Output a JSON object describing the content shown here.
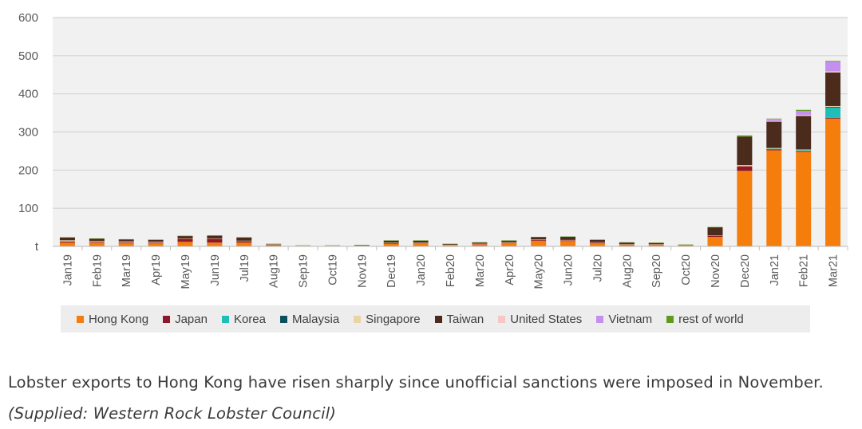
{
  "chart_data": {
    "type": "bar",
    "stacked": true,
    "categories": [
      "Jan19",
      "Feb19",
      "Mar19",
      "Apr19",
      "May19",
      "Jun19",
      "Jul19",
      "Aug19",
      "Sep19",
      "Oct19",
      "Nov19",
      "Dec19",
      "Jan20",
      "Feb20",
      "Mar20",
      "Apr20",
      "May20",
      "Jun20",
      "Jul20",
      "Aug20",
      "Sep20",
      "Oct20",
      "Nov20",
      "Dec20",
      "Jan21",
      "Feb21",
      "Mar21"
    ],
    "y_tick_labels": [
      "t",
      "100",
      "200",
      "300",
      "400",
      "500",
      "600"
    ],
    "ylim": [
      0,
      600
    ],
    "grid": true,
    "legend_position": "bottom",
    "series": [
      {
        "name": "Hong Kong",
        "color": "#f47d0c",
        "values": [
          10,
          10,
          9,
          8,
          12,
          10,
          10,
          3,
          1,
          1,
          1,
          7,
          8,
          3,
          5,
          9,
          15,
          14,
          8,
          4,
          4,
          2,
          25,
          198,
          252,
          248,
          335
        ]
      },
      {
        "name": "Japan",
        "color": "#8e1728",
        "values": [
          3,
          2,
          2,
          2,
          8,
          10,
          4,
          1,
          0,
          0,
          0,
          2,
          1,
          0,
          1,
          1,
          2,
          2,
          2,
          1,
          1,
          0,
          3,
          12,
          2,
          2,
          2
        ]
      },
      {
        "name": "Korea",
        "color": "#1fbfb8",
        "values": [
          0,
          0,
          0,
          0,
          0,
          0,
          0,
          0,
          0,
          0,
          0,
          0,
          0,
          0,
          0,
          0,
          0,
          0,
          0,
          0,
          0,
          0,
          0,
          0,
          2,
          2,
          27
        ]
      },
      {
        "name": "Malaysia",
        "color": "#0e4f5c",
        "values": [
          0,
          0,
          0,
          0,
          0,
          0,
          0,
          0,
          0,
          0,
          0,
          0,
          0,
          0,
          0,
          0,
          0,
          0,
          0,
          0,
          0,
          0,
          0,
          0,
          0,
          0,
          2
        ]
      },
      {
        "name": "Singapore",
        "color": "#ecd3a4",
        "values": [
          3,
          2,
          2,
          2,
          1,
          1,
          1,
          1,
          1,
          1,
          1,
          1,
          1,
          1,
          1,
          1,
          1,
          1,
          1,
          1,
          1,
          1,
          1,
          3,
          2,
          2,
          2
        ]
      },
      {
        "name": "Taiwan",
        "color": "#4a2b1c",
        "values": [
          7,
          6,
          5,
          5,
          6,
          7,
          8,
          1,
          0,
          0,
          1,
          5,
          5,
          2,
          3,
          4,
          6,
          8,
          6,
          4,
          3,
          1,
          21,
          75,
          69,
          88,
          88
        ]
      },
      {
        "name": "United States",
        "color": "#f7c6c8",
        "values": [
          0,
          0,
          0,
          0,
          0,
          0,
          0,
          0,
          0,
          0,
          0,
          0,
          0,
          0,
          0,
          0,
          0,
          0,
          0,
          0,
          0,
          0,
          0,
          0,
          2,
          3,
          3
        ]
      },
      {
        "name": "Vietnam",
        "color": "#c58fef",
        "values": [
          0,
          0,
          0,
          0,
          0,
          0,
          0,
          0,
          0,
          0,
          0,
          0,
          0,
          0,
          0,
          0,
          0,
          0,
          0,
          0,
          0,
          0,
          0,
          0,
          5,
          10,
          25
        ]
      },
      {
        "name": "rest of world",
        "color": "#5f9a1e",
        "values": [
          1,
          1,
          1,
          1,
          1,
          1,
          1,
          1,
          1,
          1,
          1,
          1,
          1,
          1,
          1,
          1,
          1,
          1,
          1,
          1,
          1,
          1,
          1,
          3,
          1,
          3,
          2
        ]
      }
    ]
  },
  "caption": {
    "text": "Lobster exports to Hong Kong have risen sharply since unofficial sanctions were imposed in November.",
    "credit": "(Supplied: Western Rock Lobster Council)"
  },
  "colors": {
    "plot_background": "#f1f1f1",
    "gridline": "#d4d4d4",
    "axis_text": "#595959"
  }
}
